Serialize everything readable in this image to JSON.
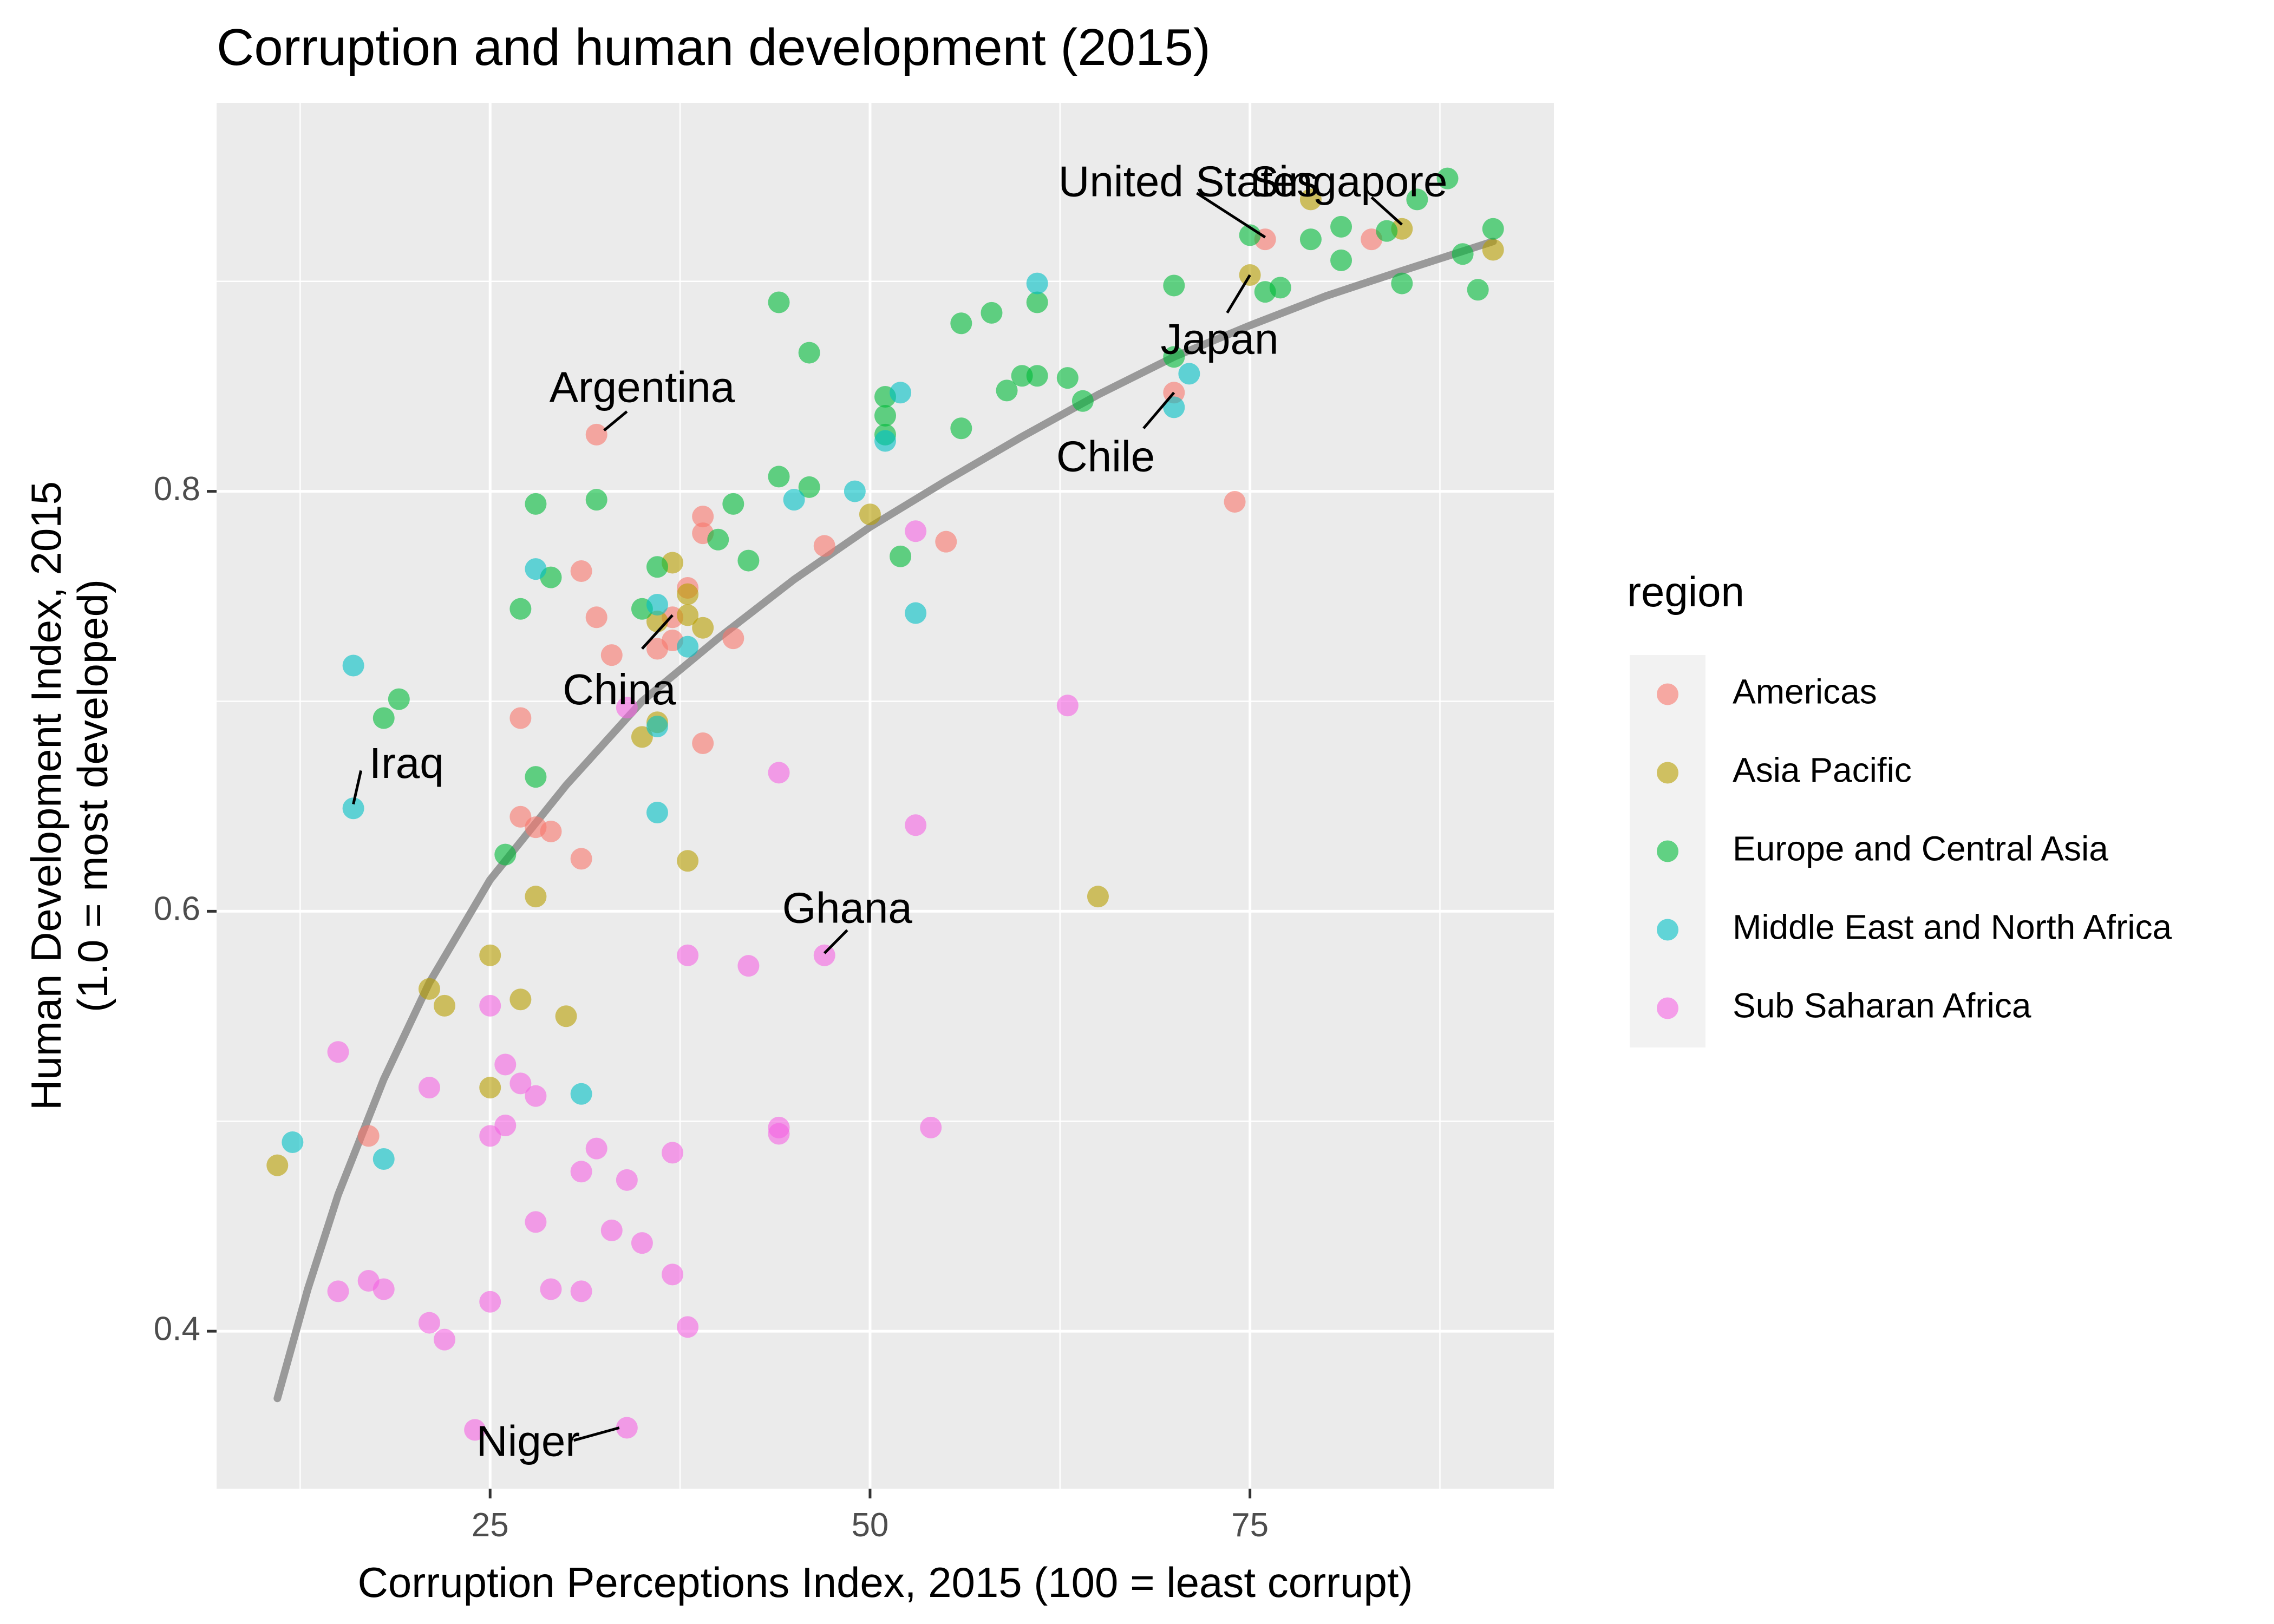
{
  "chart_data": {
    "type": "scatter",
    "title": "Corruption and human development (2015)",
    "xlabel": "Corruption Perceptions Index, 2015 (100 = least corrupt)",
    "ylabel": [
      "Human Development Index, 2015",
      "(1.0 = most developed)"
    ],
    "xlim": [
      7,
      95
    ],
    "ylim": [
      0.325,
      0.985
    ],
    "x_ticks": [
      25,
      50,
      75
    ],
    "y_ticks": [
      0.4,
      0.6,
      0.8
    ],
    "grid": true,
    "background": "#ebebeb",
    "legend": {
      "title": "region",
      "position": "right"
    },
    "series": [
      {
        "name": "Americas",
        "color": "#F8766D",
        "points": [
          [
            76,
            0.92
          ],
          [
            83,
            0.92
          ],
          [
            70,
            0.847
          ],
          [
            74,
            0.795
          ],
          [
            32,
            0.827
          ],
          [
            39,
            0.788
          ],
          [
            39,
            0.78
          ],
          [
            31,
            0.762
          ],
          [
            47,
            0.774
          ],
          [
            55,
            0.776
          ],
          [
            38,
            0.754
          ],
          [
            32,
            0.74
          ],
          [
            37,
            0.74
          ],
          [
            37,
            0.729
          ],
          [
            36,
            0.725
          ],
          [
            41,
            0.73
          ],
          [
            33,
            0.722
          ],
          [
            27,
            0.692
          ],
          [
            39,
            0.68
          ],
          [
            27,
            0.645
          ],
          [
            28,
            0.64
          ],
          [
            29,
            0.638
          ],
          [
            31,
            0.625
          ],
          [
            17,
            0.493
          ]
        ]
      },
      {
        "name": "Asia Pacific",
        "color": "#B79F00",
        "points": [
          [
            79,
            0.939
          ],
          [
            85,
            0.925
          ],
          [
            91,
            0.915
          ],
          [
            75,
            0.903
          ],
          [
            50,
            0.789
          ],
          [
            37,
            0.766
          ],
          [
            38,
            0.751
          ],
          [
            36,
            0.738
          ],
          [
            38,
            0.741
          ],
          [
            39,
            0.735
          ],
          [
            36,
            0.69
          ],
          [
            35,
            0.683
          ],
          [
            38,
            0.624
          ],
          [
            65,
            0.607
          ],
          [
            28,
            0.607
          ],
          [
            25,
            0.579
          ],
          [
            21,
            0.563
          ],
          [
            27,
            0.558
          ],
          [
            22,
            0.555
          ],
          [
            30,
            0.55
          ],
          [
            25,
            0.516
          ],
          [
            11,
            0.479
          ]
        ]
      },
      {
        "name": "Europe and Central Asia",
        "color": "#00BA38",
        "points": [
          [
            91,
            0.925
          ],
          [
            88,
            0.949
          ],
          [
            86,
            0.939
          ],
          [
            84,
            0.924
          ],
          [
            81,
            0.926
          ],
          [
            81,
            0.91
          ],
          [
            79,
            0.92
          ],
          [
            75,
            0.922
          ],
          [
            76,
            0.895
          ],
          [
            77,
            0.897
          ],
          [
            85,
            0.899
          ],
          [
            89,
            0.913
          ],
          [
            90,
            0.896
          ],
          [
            70,
            0.898
          ],
          [
            61,
            0.89
          ],
          [
            58,
            0.885
          ],
          [
            56,
            0.88
          ],
          [
            46,
            0.866
          ],
          [
            44,
            0.89
          ],
          [
            60,
            0.855
          ],
          [
            61,
            0.855
          ],
          [
            63,
            0.854
          ],
          [
            70,
            0.864
          ],
          [
            64,
            0.843
          ],
          [
            51,
            0.845
          ],
          [
            51,
            0.836
          ],
          [
            59,
            0.848
          ],
          [
            56,
            0.83
          ],
          [
            51,
            0.827
          ],
          [
            44,
            0.807
          ],
          [
            46,
            0.802
          ],
          [
            41,
            0.794
          ],
          [
            28,
            0.794
          ],
          [
            32,
            0.796
          ],
          [
            40,
            0.777
          ],
          [
            52,
            0.769
          ],
          [
            42,
            0.767
          ],
          [
            36,
            0.764
          ],
          [
            29,
            0.759
          ],
          [
            27,
            0.744
          ],
          [
            35,
            0.744
          ],
          [
            19,
            0.701
          ],
          [
            18,
            0.692
          ],
          [
            28,
            0.664
          ],
          [
            26,
            0.627
          ]
        ]
      },
      {
        "name": "Middle East and North Africa",
        "color": "#00BFC4",
        "points": [
          [
            61,
            0.899
          ],
          [
            71,
            0.856
          ],
          [
            70,
            0.84
          ],
          [
            52,
            0.847
          ],
          [
            51,
            0.824
          ],
          [
            45,
            0.796
          ],
          [
            49,
            0.8
          ],
          [
            28,
            0.763
          ],
          [
            36,
            0.746
          ],
          [
            53,
            0.742
          ],
          [
            38,
            0.726
          ],
          [
            16,
            0.717
          ],
          [
            36,
            0.688
          ],
          [
            16,
            0.649
          ],
          [
            36,
            0.647
          ],
          [
            31,
            0.513
          ],
          [
            12,
            0.49
          ],
          [
            18,
            0.482
          ]
        ]
      },
      {
        "name": "Sub Saharan Africa",
        "color": "#F564E3",
        "points": [
          [
            53,
            0.781
          ],
          [
            63,
            0.698
          ],
          [
            34,
            0.697
          ],
          [
            44,
            0.666
          ],
          [
            53,
            0.641
          ],
          [
            38,
            0.579
          ],
          [
            47,
            0.579
          ],
          [
            42,
            0.574
          ],
          [
            25,
            0.555
          ],
          [
            15,
            0.533
          ],
          [
            26,
            0.527
          ],
          [
            27,
            0.518
          ],
          [
            21,
            0.516
          ],
          [
            28,
            0.512
          ],
          [
            26,
            0.498
          ],
          [
            25,
            0.493
          ],
          [
            44,
            0.497
          ],
          [
            44,
            0.494
          ],
          [
            54,
            0.497
          ],
          [
            32,
            0.487
          ],
          [
            37,
            0.485
          ],
          [
            31,
            0.476
          ],
          [
            34,
            0.472
          ],
          [
            28,
            0.452
          ],
          [
            33,
            0.448
          ],
          [
            35,
            0.442
          ],
          [
            37,
            0.427
          ],
          [
            17,
            0.424
          ],
          [
            15,
            0.419
          ],
          [
            18,
            0.42
          ],
          [
            29,
            0.42
          ],
          [
            31,
            0.419
          ],
          [
            25,
            0.414
          ],
          [
            21,
            0.404
          ],
          [
            22,
            0.396
          ],
          [
            38,
            0.402
          ],
          [
            24,
            0.353
          ],
          [
            34,
            0.354
          ]
        ]
      }
    ],
    "trend_line": {
      "color": "#999999",
      "points": [
        [
          11,
          0.368
        ],
        [
          13,
          0.42
        ],
        [
          15,
          0.465
        ],
        [
          18,
          0.52
        ],
        [
          21,
          0.566
        ],
        [
          25,
          0.615
        ],
        [
          30,
          0.66
        ],
        [
          35,
          0.7
        ],
        [
          40,
          0.73
        ],
        [
          45,
          0.758
        ],
        [
          50,
          0.783
        ],
        [
          55,
          0.805
        ],
        [
          60,
          0.826
        ],
        [
          65,
          0.846
        ],
        [
          70,
          0.864
        ],
        [
          75,
          0.879
        ],
        [
          80,
          0.893
        ],
        [
          85,
          0.905
        ],
        [
          91,
          0.919
        ]
      ]
    },
    "annotations": [
      {
        "label": "United States",
        "anchor": "end",
        "text": [
          79.5,
          0.946
        ],
        "line_from": [
          71.5,
          0.942
        ],
        "line_to": [
          76,
          0.921
        ]
      },
      {
        "label": "Singapore",
        "anchor": "middle",
        "text": [
          81.5,
          0.946
        ],
        "line_from": [
          83.0,
          0.94
        ],
        "line_to": [
          85,
          0.927
        ]
      },
      {
        "label": "Japan",
        "anchor": "middle",
        "text": [
          73.0,
          0.871
        ],
        "line_from": [
          73.5,
          0.885
        ],
        "line_to": [
          75,
          0.903
        ]
      },
      {
        "label": "Argentina",
        "anchor": "middle",
        "text": [
          35.0,
          0.848
        ],
        "line_from": [
          34.0,
          0.838
        ],
        "line_to": [
          32.5,
          0.829
        ]
      },
      {
        "label": "Chile",
        "anchor": "middle",
        "text": [
          65.5,
          0.815
        ],
        "line_from": [
          68.0,
          0.83
        ],
        "line_to": [
          70,
          0.847
        ]
      },
      {
        "label": "China",
        "anchor": "middle",
        "text": [
          33.5,
          0.704
        ],
        "line_from": [
          35.0,
          0.725
        ],
        "line_to": [
          37,
          0.741
        ]
      },
      {
        "label": "Iraq",
        "anchor": "middle",
        "text": [
          19.5,
          0.669
        ],
        "line_from": [
          16.5,
          0.667
        ],
        "line_to": [
          16,
          0.651
        ]
      },
      {
        "label": "Ghana",
        "anchor": "middle",
        "text": [
          48.5,
          0.6
        ],
        "line_from": [
          48.5,
          0.591
        ],
        "line_to": [
          47,
          0.58
        ]
      },
      {
        "label": "Niger",
        "anchor": "middle",
        "text": [
          27.5,
          0.346
        ],
        "line_from": [
          30.5,
          0.348
        ],
        "line_to": [
          33.5,
          0.354
        ]
      }
    ]
  }
}
